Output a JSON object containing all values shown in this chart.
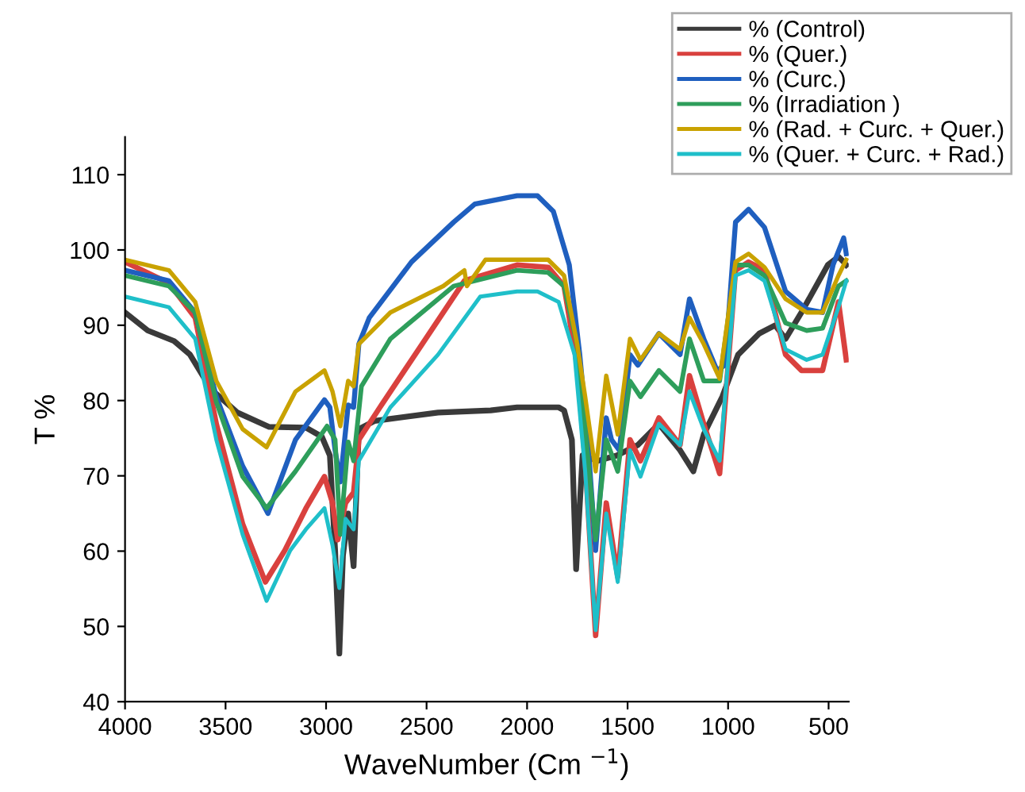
{
  "chart_data": {
    "type": "line",
    "xlabel": "WaveNumber (Cm $^{−1}$)",
    "ylabel": "T %",
    "xlim": [
      4000,
      400
    ],
    "ylim": [
      40,
      115
    ],
    "xticks": [
      4000,
      3500,
      3000,
      2500,
      2000,
      1500,
      1000,
      500
    ],
    "yticks": [
      40,
      50,
      60,
      70,
      80,
      90,
      100,
      110
    ],
    "grid": false,
    "legend": "top right",
    "marker": "none",
    "line_style": "solid",
    "series": [
      {
        "name": "% (Control)",
        "color": "#3a3a3a",
        "x": [
          4000,
          3887,
          3756,
          3677,
          3572,
          3441,
          3283,
          3100,
          3021,
          2981,
          2955,
          2934,
          2916,
          2890,
          2863,
          2837,
          2758,
          2443,
          2181,
          2050,
          2000,
          1843,
          1816,
          1777,
          1756,
          1724,
          1646,
          1554,
          1449,
          1344,
          1239,
          1173,
          1121,
          1029,
          950,
          845,
          766,
          714,
          635,
          504,
          451,
          425,
          412
        ],
        "values": [
          91.7,
          89.3,
          87.9,
          86.1,
          81.5,
          78.4,
          76.5,
          76.4,
          75.2,
          72.7,
          60.1,
          46.4,
          59.4,
          65,
          58,
          76.2,
          77.3,
          78.4,
          78.7,
          79.1,
          79.1,
          79.1,
          78.7,
          74.8,
          57.6,
          72.7,
          72,
          72.7,
          74.1,
          76.9,
          73.4,
          70.6,
          75.5,
          80.5,
          86.1,
          88.9,
          90,
          88.2,
          91.7,
          98,
          99.1,
          98.4,
          98
        ]
      },
      {
        "name": "% (Quer.)",
        "color": "#d9413e",
        "x": [
          4000,
          3782,
          3651,
          3546,
          3415,
          3302,
          3205,
          3100,
          3008,
          2968,
          2942,
          2903,
          2863,
          2837,
          2732,
          2522,
          2312,
          2050,
          1895,
          1816,
          1751,
          1711,
          1659,
          1606,
          1549,
          1488,
          1436,
          1344,
          1239,
          1192,
          1121,
          1042,
          963,
          898,
          819,
          714,
          635,
          530,
          451,
          412
        ],
        "values": [
          98.4,
          95.6,
          91,
          76.9,
          63.6,
          55.9,
          60.1,
          65.7,
          69.9,
          66.4,
          61.5,
          66.4,
          67.8,
          74.8,
          79.1,
          87.5,
          95.9,
          98,
          97.7,
          95.2,
          84.7,
          72,
          48.8,
          66.4,
          56.6,
          74.8,
          72,
          77.7,
          74.1,
          83.3,
          76.9,
          70.3,
          97.3,
          98.4,
          97.3,
          86.1,
          84,
          84,
          93.1,
          85.4
        ]
      },
      {
        "name": "% (Curc.)",
        "color": "#1f5fbf",
        "x": [
          4000,
          3782,
          3651,
          3546,
          3415,
          3289,
          3152,
          3008,
          2981,
          2955,
          2929,
          2890,
          2863,
          2837,
          2785,
          2575,
          2365,
          2260,
          2050,
          1948,
          1869,
          1790,
          1738,
          1698,
          1659,
          1606,
          1580,
          1541,
          1488,
          1449,
          1344,
          1239,
          1192,
          1121,
          1055,
          1016,
          963,
          898,
          819,
          714,
          609,
          530,
          478,
          425,
          412
        ],
        "values": [
          97.3,
          95.9,
          91.7,
          80.5,
          71.3,
          65,
          74.8,
          80.1,
          79.1,
          73.4,
          69.2,
          79.4,
          79.1,
          87.5,
          91,
          98.4,
          103.7,
          106.1,
          107.2,
          107.2,
          105.1,
          98,
          86.1,
          74.8,
          60.1,
          77.7,
          74.8,
          73.4,
          86.1,
          84.7,
          88.9,
          86.1,
          93.5,
          88.2,
          84,
          84.7,
          103.7,
          105.4,
          103,
          94.5,
          92.1,
          91.7,
          98,
          101.6,
          99.5
        ]
      },
      {
        "name": "% (Irradiation )",
        "color": "#2e9e5b",
        "x": [
          4000,
          3782,
          3651,
          3546,
          3415,
          3296,
          3152,
          2995,
          2955,
          2929,
          2890,
          2863,
          2824,
          2680,
          2365,
          2050,
          1895,
          1816,
          1751,
          1711,
          1659,
          1606,
          1549,
          1488,
          1436,
          1344,
          1239,
          1192,
          1121,
          1042,
          963,
          898,
          819,
          714,
          609,
          530,
          451,
          412
        ],
        "values": [
          96.6,
          95.2,
          91.7,
          79.8,
          69.9,
          65.7,
          70.6,
          76.6,
          74.8,
          62.2,
          74.5,
          72,
          81.9,
          88.2,
          95.2,
          97.3,
          97,
          95.2,
          87.5,
          76.2,
          61.5,
          74.8,
          70.6,
          82.6,
          80.5,
          84,
          81.2,
          88.2,
          82.6,
          82.6,
          98,
          98,
          96.6,
          90.3,
          89.3,
          89.6,
          95.2,
          95.9
        ]
      },
      {
        "name": "% (Rad. + Curc. + Quer.)",
        "color": "#c9a200",
        "x": [
          4000,
          3782,
          3651,
          3546,
          3415,
          3296,
          3152,
          3008,
          2968,
          2929,
          2890,
          2863,
          2837,
          2680,
          2417,
          2312,
          2299,
          2207,
          2050,
          1895,
          1816,
          1751,
          1711,
          1659,
          1606,
          1549,
          1488,
          1436,
          1344,
          1239,
          1192,
          1121,
          1042,
          963,
          898,
          819,
          714,
          609,
          530,
          451,
          412
        ],
        "values": [
          98.7,
          97.3,
          93.1,
          82.6,
          76.2,
          73.8,
          81.2,
          84,
          81.2,
          76.6,
          82.6,
          81.9,
          87.5,
          91.7,
          95.2,
          97.3,
          95.2,
          98.7,
          98.7,
          98.7,
          96.6,
          87.5,
          80.5,
          70.6,
          83.3,
          75.5,
          88.2,
          85.4,
          88.9,
          86.8,
          91,
          87.5,
          82.9,
          98.4,
          99.5,
          97.7,
          93.5,
          91.7,
          91.7,
          96.6,
          98.7
        ]
      },
      {
        "name": "% (Quer. + Curc. + Rad.)",
        "color": "#1fbfc9",
        "x": [
          4000,
          3782,
          3651,
          3546,
          3415,
          3296,
          3178,
          3100,
          3008,
          2968,
          2934,
          2903,
          2863,
          2837,
          2680,
          2443,
          2233,
          2050,
          1948,
          1843,
          1764,
          1711,
          1659,
          1606,
          1549,
          1488,
          1436,
          1344,
          1239,
          1192,
          1121,
          1042,
          963,
          898,
          819,
          714,
          609,
          530,
          451,
          412
        ],
        "values": [
          93.8,
          92.4,
          88.2,
          74.8,
          62.2,
          53.4,
          60.1,
          62.9,
          65.7,
          60.8,
          55.1,
          64.3,
          62.9,
          72,
          79.1,
          86.1,
          93.8,
          94.5,
          94.5,
          93.1,
          86.1,
          70.6,
          49.5,
          65,
          55.9,
          73.4,
          69.9,
          76.9,
          74.1,
          81.2,
          76.2,
          72,
          96.6,
          97.3,
          95.9,
          86.8,
          85.4,
          86.1,
          92.4,
          95.9
        ]
      }
    ]
  }
}
